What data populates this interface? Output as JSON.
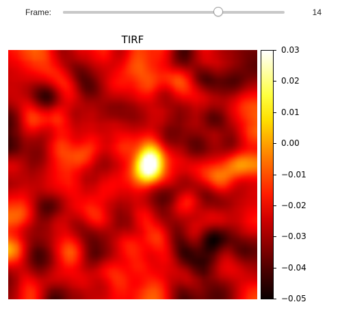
{
  "slider": {
    "label": "Frame:",
    "value": "14",
    "min": 0,
    "max": 20,
    "current": 14
  },
  "plot": {
    "title": "TIRF",
    "colormap": "hot"
  },
  "colorbar": {
    "min": -0.05,
    "max": 0.03,
    "ticks": [
      "0.03",
      "0.02",
      "0.01",
      "0.00",
      "−0.01",
      "−0.02",
      "−0.03",
      "−0.04",
      "−0.05"
    ],
    "tick_values": [
      0.03,
      0.02,
      0.01,
      0.0,
      -0.01,
      -0.02,
      -0.03,
      -0.04,
      -0.05
    ]
  }
}
